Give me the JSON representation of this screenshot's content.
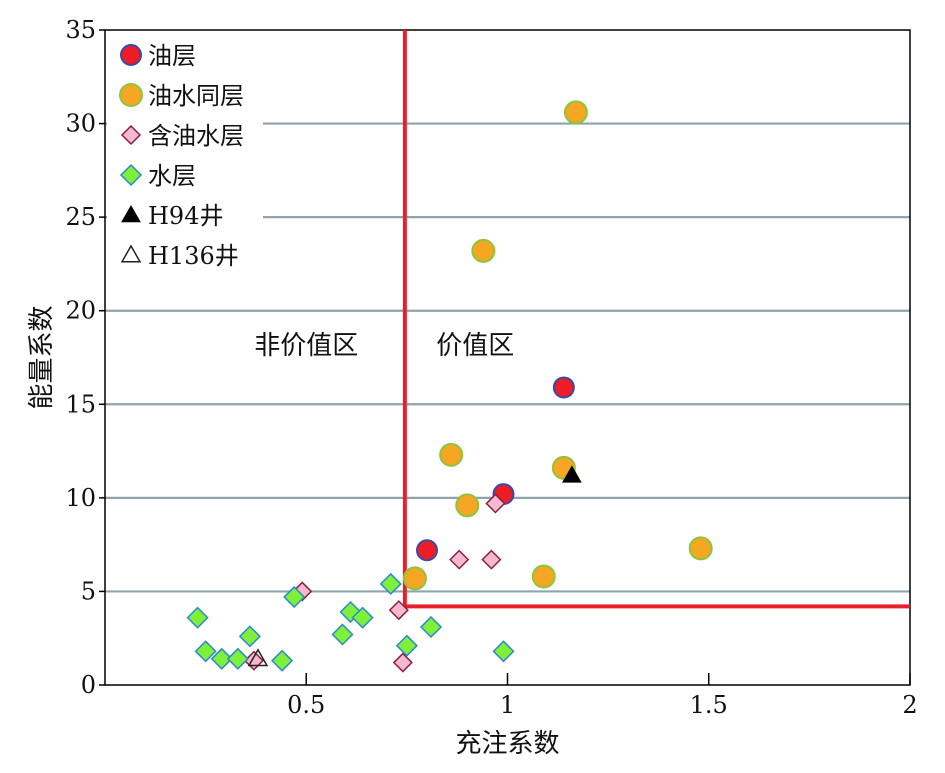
{
  "chart_data": {
    "type": "scatter",
    "xlabel": "充注系数",
    "ylabel": "能量系数",
    "xlim": [
      0,
      2
    ],
    "ylim": [
      0,
      35
    ],
    "x_ticks": [
      {
        "value": 0.5,
        "label": "0.5"
      },
      {
        "value": 1,
        "label": "1"
      },
      {
        "value": 1.5,
        "label": "1.5"
      },
      {
        "value": 2,
        "label": "2"
      }
    ],
    "y_ticks": [
      {
        "value": 0,
        "label": "0"
      },
      {
        "value": 5,
        "label": "5"
      },
      {
        "value": 10,
        "label": "10"
      },
      {
        "value": 15,
        "label": "15"
      },
      {
        "value": 20,
        "label": "20"
      },
      {
        "value": 25,
        "label": "25"
      },
      {
        "value": 30,
        "label": "30"
      },
      {
        "value": 35,
        "label": "35"
      }
    ],
    "grid": "horizontal lines at each y tick",
    "legend_position": "top-left",
    "colors": {
      "gridline": "#8fa3ad",
      "cutoff": "#e8202a",
      "oil_fill": "#ee1c24",
      "oil_stroke": "#3a4aa8",
      "oilwater_fill": "#f5a623",
      "oilwater_stroke": "#8cc63f",
      "oilbearing_fill": "#f4b8cf",
      "oilbearing_stroke": "#8a2040",
      "water_fill": "#7ef03a",
      "water_stroke": "#2a8ad0",
      "well_marker": "#000000"
    },
    "cutoff": {
      "x": 0.745,
      "y": 4.2
    },
    "regions": [
      {
        "label": "非价值区",
        "x": 0.5,
        "y": 17.7
      },
      {
        "label": "价值区",
        "x": 0.92,
        "y": 17.7
      }
    ],
    "series": [
      {
        "name": "油层",
        "marker": "circle",
        "points": [
          {
            "x": 1.14,
            "y": 15.9
          },
          {
            "x": 0.99,
            "y": 10.2
          },
          {
            "x": 0.8,
            "y": 7.2
          }
        ]
      },
      {
        "name": "油水同层",
        "marker": "circle",
        "points": [
          {
            "x": 1.17,
            "y": 30.6
          },
          {
            "x": 0.94,
            "y": 23.2
          },
          {
            "x": 0.86,
            "y": 12.3
          },
          {
            "x": 1.14,
            "y": 11.6
          },
          {
            "x": 0.9,
            "y": 9.6
          },
          {
            "x": 1.48,
            "y": 7.3
          },
          {
            "x": 1.09,
            "y": 5.8
          },
          {
            "x": 0.77,
            "y": 5.7
          }
        ]
      },
      {
        "name": "含油水层",
        "marker": "diamond",
        "points": [
          {
            "x": 0.97,
            "y": 9.7
          },
          {
            "x": 0.88,
            "y": 6.7
          },
          {
            "x": 0.96,
            "y": 6.7
          },
          {
            "x": 0.49,
            "y": 5.0
          },
          {
            "x": 0.73,
            "y": 4.0
          },
          {
            "x": 0.37,
            "y": 1.3
          },
          {
            "x": 0.74,
            "y": 1.2
          }
        ]
      },
      {
        "name": "水层",
        "marker": "diamond",
        "points": [
          {
            "x": 0.71,
            "y": 5.4
          },
          {
            "x": 0.47,
            "y": 4.7
          },
          {
            "x": 0.61,
            "y": 3.9
          },
          {
            "x": 0.64,
            "y": 3.6
          },
          {
            "x": 0.23,
            "y": 3.6
          },
          {
            "x": 0.81,
            "y": 3.1
          },
          {
            "x": 0.59,
            "y": 2.7
          },
          {
            "x": 0.36,
            "y": 2.6
          },
          {
            "x": 0.75,
            "y": 2.1
          },
          {
            "x": 0.25,
            "y": 1.8
          },
          {
            "x": 0.29,
            "y": 1.4
          },
          {
            "x": 0.33,
            "y": 1.4
          },
          {
            "x": 0.44,
            "y": 1.3
          },
          {
            "x": 0.99,
            "y": 1.8
          }
        ]
      },
      {
        "name": "H94井",
        "marker": "triangle-filled",
        "points": [
          {
            "x": 1.16,
            "y": 11.2
          }
        ]
      },
      {
        "name": "H136井",
        "marker": "triangle-open",
        "points": [
          {
            "x": 0.38,
            "y": 1.4
          }
        ]
      }
    ]
  }
}
